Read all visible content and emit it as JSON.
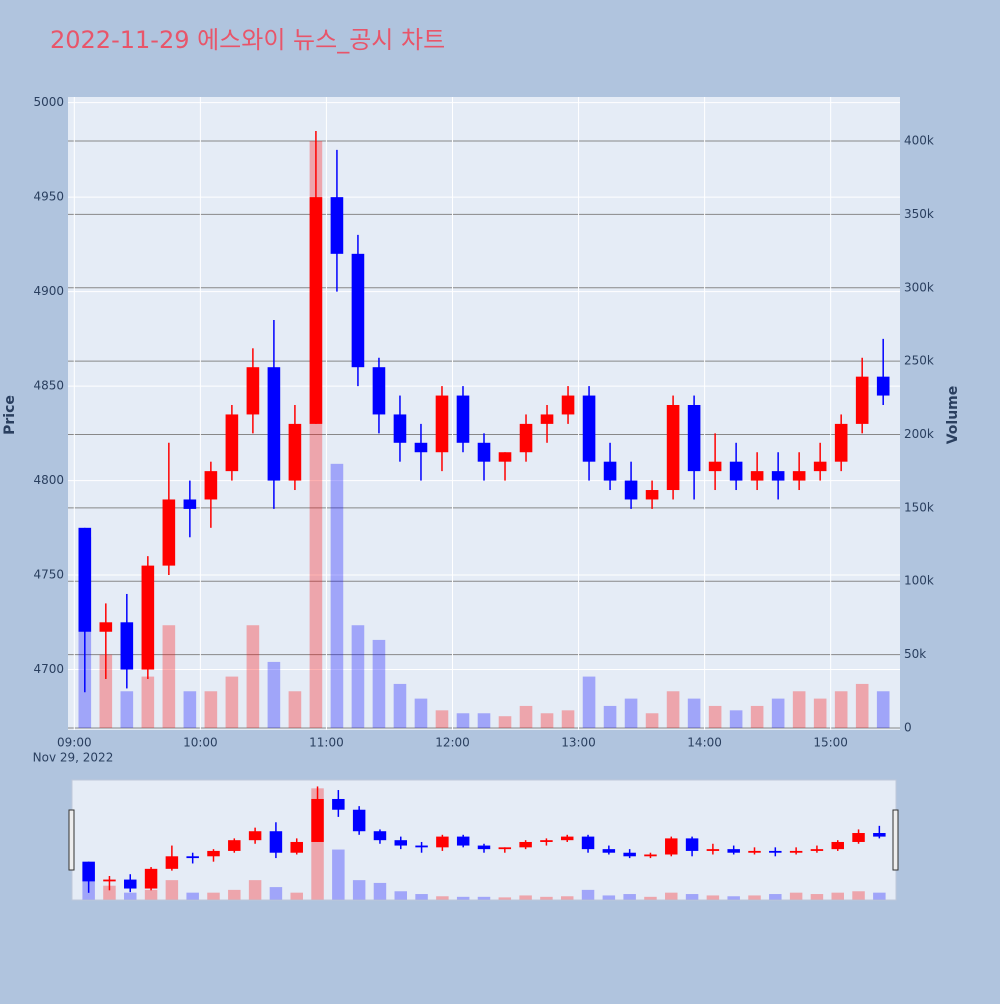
{
  "chart_data": {
    "type": "candlestick",
    "title": "2022-11-29 에스와이 뉴스_공시 차트",
    "x": [
      "2022-11-29 09:00",
      "2022-11-29 09:10",
      "2022-11-29 09:20",
      "2022-11-29 09:30",
      "2022-11-29 09:40",
      "2022-11-29 09:50",
      "2022-11-29 10:00",
      "2022-11-29 10:10",
      "2022-11-29 10:20",
      "2022-11-29 10:30",
      "2022-11-29 10:40",
      "2022-11-29 10:50",
      "2022-11-29 11:00",
      "2022-11-29 11:10",
      "2022-11-29 11:20",
      "2022-11-29 11:30",
      "2022-11-29 11:40",
      "2022-11-29 11:50",
      "2022-11-29 12:00",
      "2022-11-29 12:10",
      "2022-11-29 12:20",
      "2022-11-29 12:30",
      "2022-11-29 12:40",
      "2022-11-29 12:50",
      "2022-11-29 13:00",
      "2022-11-29 13:10",
      "2022-11-29 13:20",
      "2022-11-29 13:30",
      "2022-11-29 13:40",
      "2022-11-29 13:50",
      "2022-11-29 14:00",
      "2022-11-29 14:10",
      "2022-11-29 14:20",
      "2022-11-29 14:30",
      "2022-11-29 14:40",
      "2022-11-29 14:50",
      "2022-11-29 15:00",
      "2022-11-29 15:10",
      "2022-11-29 15:20"
    ],
    "open": [
      4775,
      4720,
      4725,
      4700,
      4755,
      4790,
      4790,
      4805,
      4835,
      4860,
      4800,
      4830,
      4950,
      4920,
      4860,
      4835,
      4820,
      4815,
      4845,
      4820,
      4810,
      4815,
      4830,
      4835,
      4845,
      4810,
      4800,
      4790,
      4795,
      4840,
      4805,
      4810,
      4800,
      4805,
      4800,
      4805,
      4810,
      4830,
      4855
    ],
    "high": [
      4775,
      4735,
      4740,
      4760,
      4820,
      4800,
      4810,
      4840,
      4870,
      4885,
      4840,
      4985,
      4975,
      4930,
      4865,
      4845,
      4830,
      4850,
      4850,
      4825,
      4815,
      4835,
      4840,
      4850,
      4850,
      4820,
      4810,
      4800,
      4845,
      4845,
      4825,
      4820,
      4815,
      4815,
      4815,
      4820,
      4835,
      4865,
      4875
    ],
    "low": [
      4688,
      4695,
      4690,
      4695,
      4750,
      4770,
      4775,
      4800,
      4825,
      4785,
      4795,
      4830,
      4900,
      4850,
      4825,
      4810,
      4800,
      4805,
      4815,
      4800,
      4800,
      4810,
      4820,
      4830,
      4800,
      4795,
      4785,
      4785,
      4790,
      4790,
      4795,
      4795,
      4795,
      4790,
      4795,
      4800,
      4805,
      4825,
      4840
    ],
    "close": [
      4720,
      4725,
      4700,
      4755,
      4790,
      4785,
      4805,
      4835,
      4860,
      4800,
      4830,
      4950,
      4920,
      4860,
      4835,
      4820,
      4815,
      4845,
      4820,
      4810,
      4815,
      4830,
      4835,
      4845,
      4810,
      4800,
      4790,
      4795,
      4840,
      4805,
      4810,
      4800,
      4805,
      4800,
      4805,
      4810,
      4830,
      4855,
      4845
    ],
    "volume": [
      130000,
      50000,
      25000,
      35000,
      70000,
      25000,
      25000,
      35000,
      70000,
      45000,
      25000,
      400000,
      180000,
      70000,
      60000,
      30000,
      20000,
      12000,
      10000,
      10000,
      8000,
      15000,
      10000,
      12000,
      35000,
      15000,
      20000,
      10000,
      25000,
      20000,
      15000,
      12000,
      15000,
      20000,
      25000,
      20000,
      25000,
      30000,
      25000
    ],
    "increasing_color": "#ff0000",
    "decreasing_color": "#0000ff",
    "xlim": [
      "2022-11-29 08:57",
      "2022-11-29 15:33"
    ],
    "xticks": [
      {
        "value": "2022-11-29 09:00",
        "label": "09:00"
      },
      {
        "value": "2022-11-29 10:00",
        "label": "10:00"
      },
      {
        "value": "2022-11-29 11:00",
        "label": "11:00"
      },
      {
        "value": "2022-11-29 12:00",
        "label": "12:00"
      },
      {
        "value": "2022-11-29 13:00",
        "label": "13:00"
      },
      {
        "value": "2022-11-29 14:00",
        "label": "14:00"
      },
      {
        "value": "2022-11-29 15:00",
        "label": "15:00"
      }
    ],
    "x_date_label": "Nov 29, 2022",
    "ylabel": "Price",
    "ylim": [
      4668,
      5003
    ],
    "yticks": [
      4700,
      4750,
      4800,
      4850,
      4900,
      4950,
      5000
    ],
    "y2label": "Volume",
    "y2lim": [
      -1400,
      430000
    ],
    "y2ticks": [
      0,
      {
        "value": 50000,
        "label": "50k"
      },
      {
        "value": 100000,
        "label": "100k"
      },
      {
        "value": 150000,
        "label": "150k"
      },
      {
        "value": 200000,
        "label": "200k"
      },
      {
        "value": 250000,
        "label": "250k"
      },
      {
        "value": 300000,
        "label": "300k"
      },
      {
        "value": 350000,
        "label": "350k"
      },
      {
        "value": 400000,
        "label": "400k"
      }
    ],
    "rangeslider": true
  }
}
